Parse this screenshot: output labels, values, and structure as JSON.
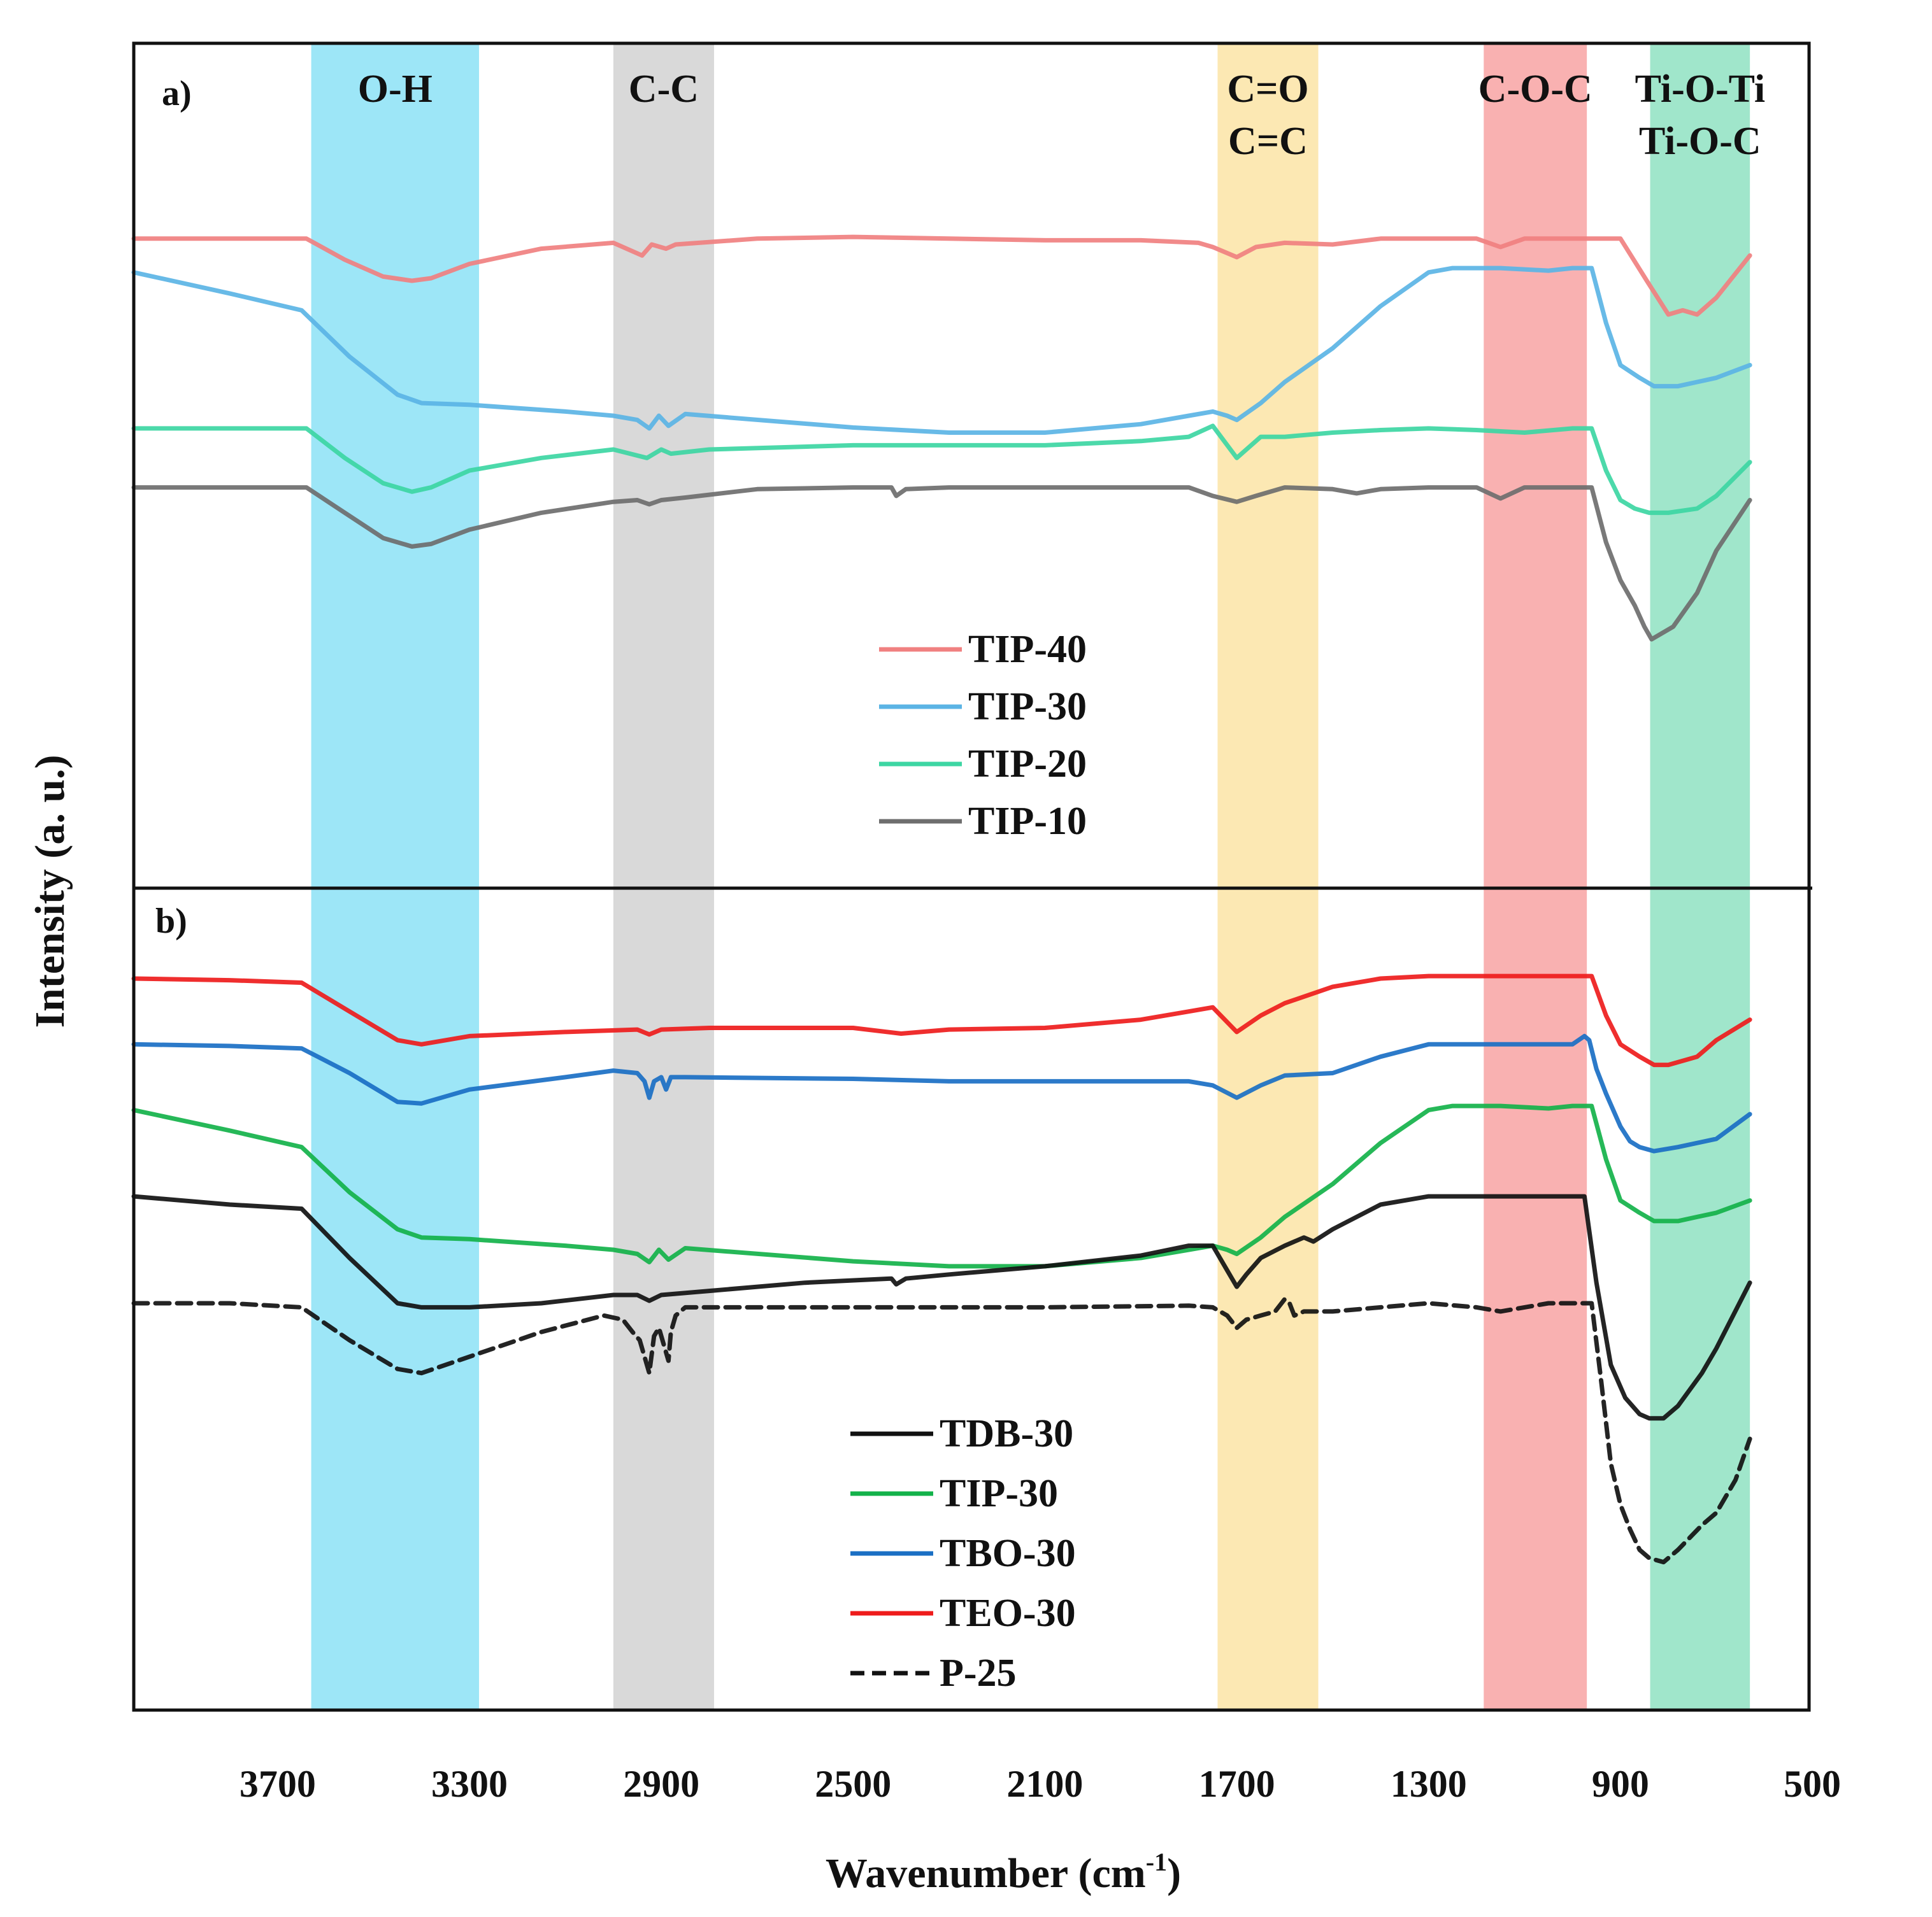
{
  "chart_data": {
    "type": "line",
    "xlabel_main": "Wavenumber (cm",
    "xlabel_sup": "-1",
    "xlabel_close": ")",
    "ylabel": "Intensity (a. u.)",
    "xlim": [
      4000,
      500
    ],
    "x_ticks": [
      3700,
      3300,
      2900,
      2500,
      2100,
      1700,
      1300,
      900,
      500
    ],
    "bands": [
      {
        "label_lines": [
          "O-H"
        ],
        "x_range": [
          3630,
          3280
        ],
        "color": "#9de6f7"
      },
      {
        "label_lines": [
          "C-C"
        ],
        "x_range": [
          3000,
          2790
        ],
        "color": "#d9d9d9"
      },
      {
        "label_lines": [
          "C=O",
          "C=C"
        ],
        "x_range": [
          1740,
          1530
        ],
        "color": "#fce8b3"
      },
      {
        "label_lines": [
          "C-O-C"
        ],
        "x_range": [
          1185,
          970
        ],
        "color": "#f9b1b1"
      },
      {
        "label_lines": [
          "Ti-O-Ti",
          "Ti-O-C"
        ],
        "x_range": [
          838,
          630
        ],
        "color": "#a0e6cb"
      }
    ],
    "panels": [
      {
        "label": "a)",
        "y_units": "arbitrary (0 = bottom of panel, 100 = top)",
        "series": [
          {
            "name": "TIP-40",
            "color": "#f08080",
            "dash": false,
            "x": [
              4000,
              3640,
              3560,
              3480,
              3420,
              3380,
              3300,
              3150,
              3000,
              2940,
              2920,
              2890,
              2870,
              2700,
              2500,
              2300,
              2100,
              1900,
              1780,
              1750,
              1700,
              1660,
              1600,
              1500,
              1400,
              1300,
              1200,
              1150,
              1100,
              1000,
              900,
              845,
              800,
              770,
              740,
              700,
              630
            ],
            "y": [
              77,
              77,
              74.5,
              72.5,
              72,
              72.3,
              74,
              75.8,
              76.5,
              75,
              76.3,
              75.8,
              76.3,
              77,
              77.2,
              77,
              76.8,
              76.8,
              76.5,
              76,
              74.8,
              76,
              76.5,
              76.3,
              77,
              77,
              77,
              76,
              77,
              77,
              77,
              72,
              68,
              68.5,
              68,
              70,
              75
            ]
          },
          {
            "name": "TIP-30",
            "color": "#5bb4e5",
            "dash": false,
            "x": [
              4000,
              3800,
              3650,
              3550,
              3450,
              3400,
              3300,
              3100,
              3000,
              2950,
              2925,
              2905,
              2885,
              2850,
              2500,
              2300,
              2100,
              1900,
              1800,
              1750,
              1720,
              1700,
              1650,
              1600,
              1500,
              1400,
              1300,
              1250,
              1150,
              1050,
              1000,
              960,
              930,
              900,
              860,
              830,
              780,
              700,
              630
            ],
            "y": [
              73,
              70.5,
              68.5,
              63,
              58.5,
              57.5,
              57.3,
              56.5,
              56,
              55.5,
              54.5,
              56,
              54.8,
              56.2,
              54.6,
              54,
              54,
              55,
              56,
              56.5,
              56,
              55.5,
              57.5,
              60,
              64,
              69,
              73,
              73.5,
              73.5,
              73.2,
              73.5,
              73.5,
              67,
              62,
              60.5,
              59.5,
              59.5,
              60.5,
              62
            ]
          },
          {
            "name": "TIP-20",
            "color": "#3dd6a3",
            "dash": false,
            "x": [
              4000,
              3640,
              3560,
              3480,
              3420,
              3380,
              3300,
              3150,
              3000,
              2930,
              2900,
              2880,
              2800,
              2500,
              2300,
              2100,
              1900,
              1800,
              1750,
              1700,
              1650,
              1600,
              1500,
              1400,
              1300,
              1200,
              1100,
              1000,
              960,
              930,
              900,
              870,
              840,
              800,
              740,
              700,
              630
            ],
            "y": [
              54.5,
              54.5,
              51,
              48,
              47,
              47.5,
              49.5,
              51,
              52,
              51,
              52,
              51.5,
              52,
              52.5,
              52.5,
              52.5,
              53,
              53.5,
              54.8,
              51,
              53.5,
              53.5,
              54,
              54.3,
              54.5,
              54.3,
              54,
              54.5,
              54.5,
              49.5,
              46,
              45,
              44.5,
              44.5,
              45,
              46.5,
              50.5
            ]
          },
          {
            "name": "TIP-10",
            "color": "#6e6e6e",
            "dash": false,
            "x": [
              4000,
              3640,
              3560,
              3480,
              3420,
              3380,
              3300,
              3150,
              3000,
              2950,
              2925,
              2900,
              2850,
              2700,
              2500,
              2420,
              2410,
              2390,
              2300,
              2100,
              1900,
              1800,
              1750,
              1700,
              1660,
              1600,
              1500,
              1450,
              1400,
              1300,
              1200,
              1150,
              1100,
              1000,
              960,
              930,
              900,
              870,
              850,
              835,
              790,
              740,
              700,
              630
            ],
            "y": [
              47.5,
              47.5,
              44.5,
              41.5,
              40.5,
              40.8,
              42.5,
              44.5,
              45.8,
              46,
              45.5,
              46,
              46.3,
              47.3,
              47.5,
              47.5,
              46.5,
              47.3,
              47.5,
              47.5,
              47.5,
              47.5,
              46.5,
              45.8,
              46.5,
              47.5,
              47.3,
              46.8,
              47.3,
              47.5,
              47.5,
              46.2,
              47.5,
              47.5,
              47.5,
              41,
              36.5,
              33.5,
              31,
              29.5,
              31,
              35,
              40,
              46
            ]
          }
        ],
        "legend": [
          "TIP-40",
          "TIP-30",
          "TIP-20",
          "TIP-10"
        ]
      },
      {
        "label": "b)",
        "y_units": "arbitrary (0 = bottom of panel, 100 = top)",
        "series": [
          {
            "name": "TEO-30",
            "color": "#ee1c1c",
            "dash": false,
            "x": [
              4000,
              3800,
              3650,
              3550,
              3450,
              3400,
              3300,
              3100,
              2950,
              2925,
              2900,
              2800,
              2500,
              2400,
              2300,
              2100,
              1900,
              1800,
              1750,
              1700,
              1650,
              1600,
              1500,
              1400,
              1300,
              1200,
              1050,
              1000,
              960,
              930,
              900,
              860,
              830,
              800,
              740,
              700,
              630
            ],
            "y": [
              89,
              88.8,
              88.5,
              85,
              81.5,
              81,
              82,
              82.5,
              82.8,
              82.2,
              82.8,
              83,
              83,
              82.3,
              82.8,
              83,
              84,
              85,
              85.5,
              82.5,
              84.5,
              86,
              88,
              89,
              89.3,
              89.3,
              89.3,
              89.3,
              89.3,
              84.5,
              81,
              79.5,
              78.5,
              78.5,
              79.5,
              81.5,
              84
            ]
          },
          {
            "name": "TBO-30",
            "color": "#1a6fc4",
            "dash": false,
            "x": [
              4000,
              3800,
              3650,
              3550,
              3450,
              3400,
              3300,
              3100,
              3000,
              2950,
              2935,
              2925,
              2915,
              2900,
              2890,
              2880,
              2850,
              2500,
              2300,
              2100,
              1900,
              1800,
              1750,
              1700,
              1650,
              1600,
              1500,
              1400,
              1300,
              1200,
              1100,
              1000,
              975,
              965,
              950,
              930,
              900,
              880,
              860,
              830,
              780,
              700,
              630
            ],
            "y": [
              81,
              80.8,
              80.5,
              77.5,
              74,
              73.8,
              75.5,
              77,
              77.8,
              77.5,
              76.5,
              74.5,
              76.5,
              77,
              75.5,
              77,
              77,
              76.8,
              76.5,
              76.5,
              76.5,
              76.5,
              76,
              74.5,
              76,
              77.2,
              77.5,
              79.5,
              81,
              81,
              81,
              81,
              82,
              81.5,
              78,
              75,
              71,
              69.2,
              68.5,
              68,
              68.5,
              69.5,
              72.5
            ]
          },
          {
            "name": "TIP-30",
            "color": "#13b24a",
            "dash": false,
            "x": [
              4000,
              3800,
              3650,
              3550,
              3450,
              3400,
              3300,
              3100,
              3000,
              2950,
              2925,
              2905,
              2885,
              2850,
              2500,
              2300,
              2100,
              1900,
              1800,
              1750,
              1720,
              1700,
              1650,
              1600,
              1500,
              1400,
              1300,
              1250,
              1150,
              1050,
              1000,
              960,
              930,
              900,
              860,
              830,
              780,
              700,
              630
            ],
            "y": [
              73,
              70.5,
              68.5,
              63,
              58.5,
              57.5,
              57.3,
              56.5,
              56,
              55.5,
              54.5,
              56,
              54.8,
              56.2,
              54.6,
              54,
              54,
              55,
              56,
              56.5,
              56,
              55.5,
              57.5,
              60,
              64,
              69,
              73,
              73.5,
              73.5,
              73.2,
              73.5,
              73.5,
              67,
              62,
              60.5,
              59.5,
              59.5,
              60.5,
              62
            ]
          },
          {
            "name": "TDB-30",
            "color": "#111111",
            "dash": false,
            "x": [
              4000,
              3800,
              3650,
              3550,
              3450,
              3400,
              3300,
              3150,
              3000,
              2950,
              2925,
              2900,
              2800,
              2600,
              2420,
              2410,
              2390,
              2300,
              2100,
              1900,
              1800,
              1750,
              1720,
              1700,
              1680,
              1650,
              1600,
              1560,
              1540,
              1500,
              1400,
              1300,
              1200,
              1050,
              1000,
              975,
              950,
              920,
              890,
              860,
              840,
              810,
              780,
              730,
              700,
              630
            ],
            "y": [
              62.5,
              61.5,
              61,
              55,
              49.5,
              49,
              49,
              49.5,
              50.5,
              50.5,
              49.8,
              50.5,
              51,
              52,
              52.5,
              51.8,
              52.5,
              53,
              54,
              55.3,
              56.5,
              56.5,
              53.5,
              51.5,
              53,
              55,
              56.5,
              57.5,
              57,
              58.5,
              61.5,
              62.5,
              62.5,
              62.5,
              62.5,
              62.5,
              52,
              42,
              38,
              36,
              35.5,
              35.5,
              37,
              41,
              44,
              52
            ]
          },
          {
            "name": "P-25",
            "color": "#111111",
            "dash": true,
            "x": [
              4000,
              3800,
              3650,
              3550,
              3450,
              3400,
              3300,
              3150,
              3020,
              2980,
              2960,
              2945,
              2935,
              2925,
              2915,
              2905,
              2895,
              2885,
              2880,
              2870,
              2850,
              2500,
              2100,
              1800,
              1750,
              1720,
              1700,
              1680,
              1650,
              1620,
              1600,
              1590,
              1580,
              1560,
              1500,
              1400,
              1300,
              1200,
              1150,
              1050,
              1000,
              960,
              940,
              920,
              900,
              880,
              860,
              840,
              810,
              780,
              730,
              700,
              660,
              630
            ],
            "y": [
              49.5,
              49.5,
              49,
              45,
              41.5,
              41,
              43,
              46,
              48,
              47.5,
              46,
              45,
              43,
              41,
              45.5,
              46.5,
              44.5,
              42.5,
              46,
              48,
              49,
              49,
              49,
              49.2,
              49,
              48,
              46.5,
              47.5,
              48,
              48.5,
              50,
              49.5,
              48,
              48.5,
              48.5,
              49,
              49.5,
              49,
              48.5,
              49.5,
              49.5,
              49.5,
              40,
              30,
              25,
              22,
              19.5,
              18.5,
              18,
              19.5,
              22.5,
              24,
              28,
              33
            ]
          }
        ],
        "legend": [
          "TDB-30",
          "TIP-30",
          "TBO-30",
          "TEO-30",
          "P-25"
        ]
      }
    ]
  }
}
